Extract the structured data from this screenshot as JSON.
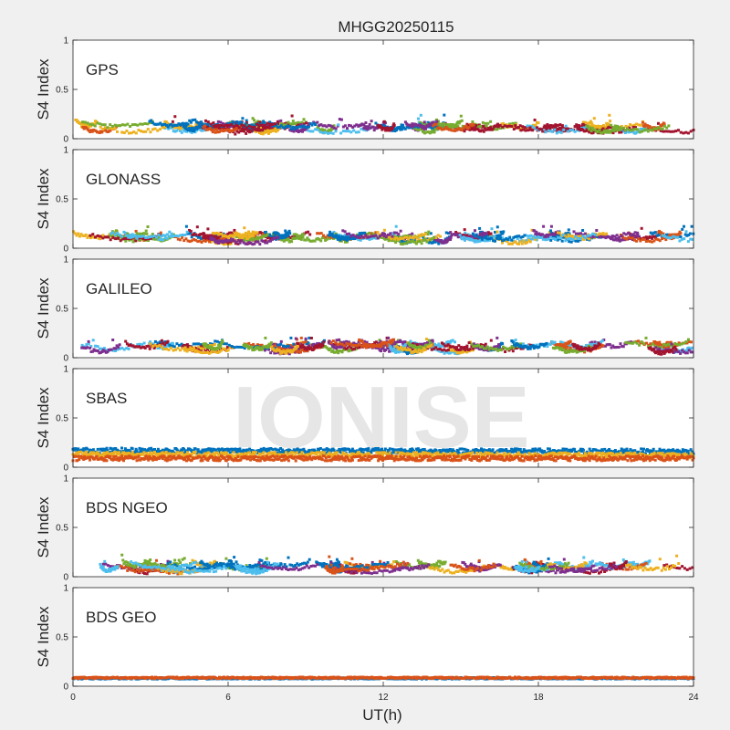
{
  "chart_data": {
    "type": "scatter",
    "title": "MHGG20250115",
    "xlabel": "UT(h)",
    "ylabel": "S4 Index",
    "xlim": [
      0,
      24
    ],
    "ylim": [
      0,
      1
    ],
    "xticks": [
      0,
      6,
      12,
      18,
      24
    ],
    "yticks": [
      0,
      0.5,
      1
    ],
    "ytick_labels": [
      "0",
      "0.5",
      "1"
    ],
    "grid": false,
    "watermark": "IONISE",
    "series_colors": [
      "#0072bd",
      "#d95319",
      "#edb120",
      "#7e2f8e",
      "#77ac30",
      "#4dbeee",
      "#a2142f"
    ],
    "panels": [
      {
        "label": "GPS",
        "level": 0.09,
        "spread": 0.035,
        "max_peak": 0.24
      },
      {
        "label": "GLONASS",
        "level": 0.08,
        "spread": 0.035,
        "max_peak": 0.22
      },
      {
        "label": "GALILEO",
        "level": 0.08,
        "spread": 0.035,
        "max_peak": 0.2
      },
      {
        "label": "SBAS",
        "level": 0.12,
        "spread": 0.025,
        "max_peak": 0.22,
        "series_levels": [
          {
            "color": "#0072bd",
            "start": 0.17,
            "end": 0.16
          },
          {
            "color": "#edb120",
            "start": 0.13,
            "end": 0.12
          },
          {
            "color": "#d95319",
            "start": 0.09,
            "end": 0.09
          }
        ]
      },
      {
        "label": "BDS NGEO",
        "level": 0.07,
        "spread": 0.035,
        "max_peak": 0.22
      },
      {
        "label": "BDS GEO",
        "level": 0.08,
        "spread": 0.008,
        "max_peak": 0.1,
        "series_levels": [
          {
            "color": "#0072bd",
            "start": 0.08,
            "end": 0.08
          },
          {
            "color": "#d95319",
            "start": 0.085,
            "end": 0.085
          }
        ]
      }
    ]
  }
}
